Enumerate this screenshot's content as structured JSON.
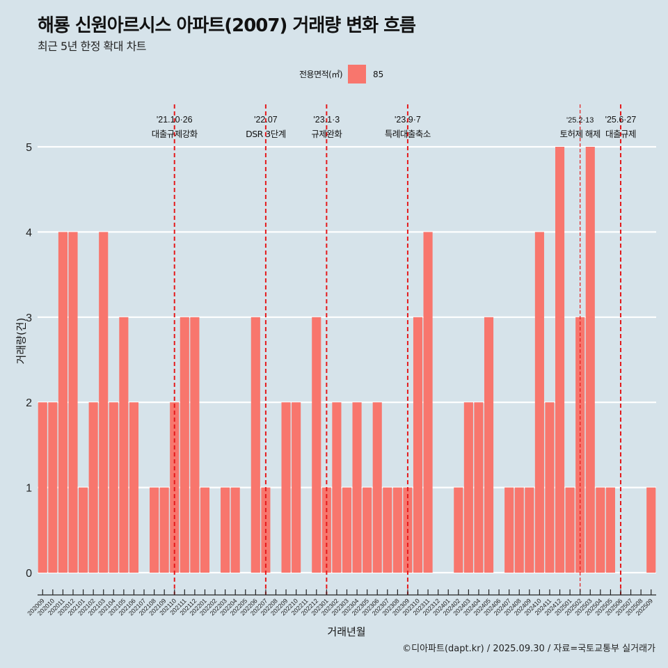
{
  "title": "해룡 신원아르시스 아파트(2007) 거래량 변화 흐름",
  "subtitle": "최근 5년 한정 확대 차트",
  "legend": {
    "title": "전용면적(㎡)",
    "items": [
      {
        "label": "85",
        "color": "#f8766d"
      }
    ]
  },
  "caption": "©디아파트(dapt.kr) / 2025.09.30 / 자료=국토교통부 실거래가",
  "colors": {
    "background": "#d6e3ea",
    "bar": "#f8766d",
    "gridline": "#ffffff",
    "event_line": "#e41a1c"
  },
  "chart_data": {
    "type": "bar",
    "title": "해룡 신원아르시스 아파트(2007) 거래량 변화 흐름",
    "subtitle": "최근 5년 한정 확대 차트",
    "xlabel": "거래년월",
    "ylabel": "거래량(건)",
    "ylim": [
      0,
      5
    ],
    "yticks": [
      "0",
      "1",
      "2",
      "3",
      "4",
      "5"
    ],
    "grid": true,
    "legend_position": "top",
    "categories": [
      "202009",
      "202010",
      "202011",
      "202012",
      "202101",
      "202102",
      "202103",
      "202104",
      "202105",
      "202106",
      "202107",
      "202108",
      "202109",
      "202110",
      "202111",
      "202112",
      "202201",
      "202202",
      "202203",
      "202204",
      "202205",
      "202206",
      "202207",
      "202208",
      "202209",
      "202210",
      "202211",
      "202212",
      "202301",
      "202302",
      "202303",
      "202304",
      "202305",
      "202306",
      "202307",
      "202308",
      "202309",
      "202310",
      "202311",
      "202312",
      "202401",
      "202402",
      "202403",
      "202404",
      "202405",
      "202406",
      "202407",
      "202408",
      "202409",
      "202410",
      "202411",
      "202412",
      "202501",
      "202502",
      "202503",
      "202504",
      "202505",
      "202506",
      "202507",
      "202508",
      "202509"
    ],
    "series": [
      {
        "name": "85",
        "values": [
          2,
          2,
          4,
          4,
          1,
          2,
          4,
          2,
          3,
          2,
          0,
          1,
          1,
          2,
          3,
          3,
          1,
          0,
          1,
          1,
          0,
          3,
          1,
          0,
          2,
          2,
          0,
          3,
          1,
          2,
          1,
          2,
          1,
          2,
          1,
          1,
          1,
          3,
          4,
          0,
          0,
          1,
          2,
          2,
          3,
          0,
          1,
          1,
          1,
          4,
          2,
          5,
          1,
          3,
          5,
          1,
          1,
          0,
          0,
          0,
          1
        ]
      }
    ],
    "annotations": [
      {
        "x": "202110",
        "date": "'21.10·26",
        "label": "대출규제강화",
        "style": "dashed"
      },
      {
        "x": "202207",
        "date": "'22.07",
        "label": "DSR 3단계",
        "style": "dashed"
      },
      {
        "x": "202301",
        "date": "'23.1·3",
        "label": "규제완화",
        "style": "dashed"
      },
      {
        "x": "202309",
        "date": "'23.9·7",
        "label": "특례대출축소",
        "style": "dashed"
      },
      {
        "x": "202502",
        "date": "'25.2·13",
        "label": "토허제 해제",
        "style": "dashed-thin"
      },
      {
        "x": "202506",
        "date": "'25.6·27",
        "label": "대출규제",
        "style": "dashed"
      }
    ]
  }
}
